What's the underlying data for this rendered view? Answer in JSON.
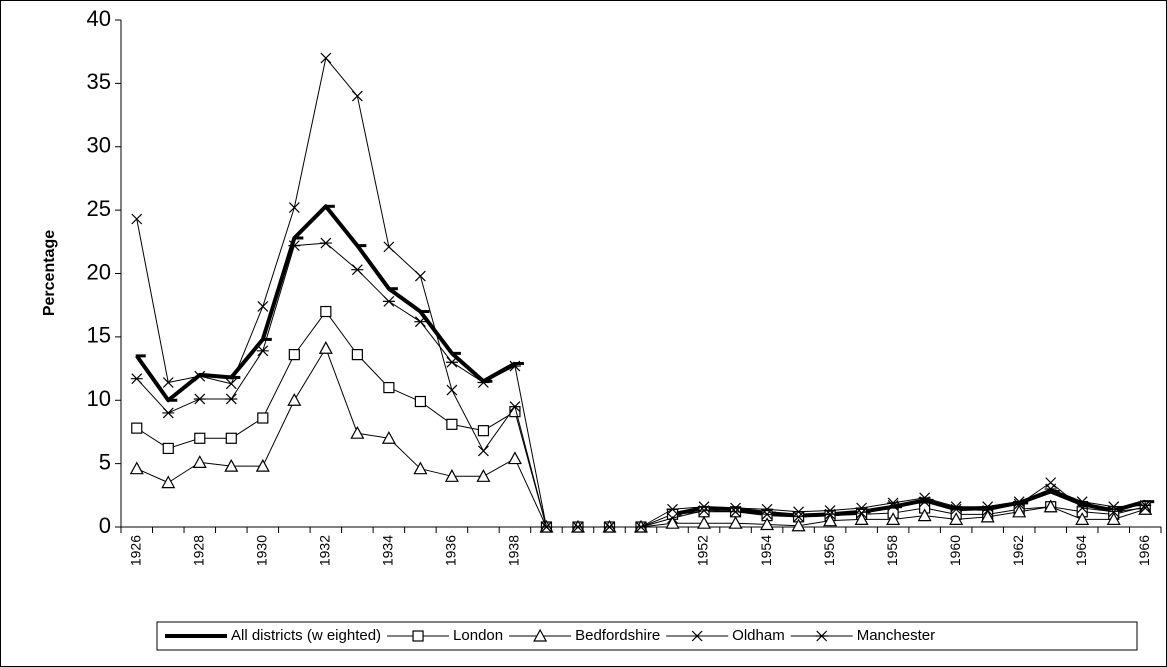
{
  "chart_data": {
    "type": "line",
    "y_label": "Percentage",
    "categories": [
      "1926",
      null,
      "1928",
      null,
      "1930",
      null,
      "1932",
      null,
      "1934",
      null,
      "1936",
      null,
      "1938",
      null,
      null,
      null,
      null,
      null,
      "1952",
      null,
      "1954",
      null,
      "1956",
      null,
      "1958",
      null,
      "1960",
      null,
      "1962",
      null,
      "1964",
      null,
      "1966"
    ],
    "ylim": [
      0,
      40
    ],
    "yticks": [
      0,
      5,
      10,
      15,
      20,
      25,
      30,
      35,
      40
    ],
    "grid": false,
    "legend": "bottom",
    "series": [
      {
        "name": "All districts (w eighted)",
        "color": "#000000",
        "line_width": 4,
        "marker": "dash",
        "values": [
          13.5,
          10,
          12,
          11.8,
          14.8,
          22.8,
          25.3,
          22.2,
          18.8,
          17,
          13.7,
          11.5,
          12.9,
          null,
          null,
          null,
          null,
          1.0,
          1.5,
          1.4,
          1.1,
          0.9,
          1.0,
          1.2,
          1.6,
          2.1,
          1.4,
          1.5,
          1.9,
          2.8,
          1.8,
          1.3,
          2.0
        ]
      },
      {
        "name": "London",
        "color": "#000000",
        "line_width": 1,
        "marker": "square",
        "values": [
          7.8,
          6.2,
          7.0,
          7.0,
          8.6,
          13.6,
          17.0,
          13.6,
          11.0,
          9.9,
          8.1,
          7.6,
          9.1,
          0,
          0,
          0,
          0,
          1.0,
          1.2,
          1.2,
          0.9,
          0.8,
          0.9,
          1.0,
          1.1,
          1.5,
          1.0,
          1.0,
          1.4,
          1.6,
          1.2,
          1.0,
          1.6
        ]
      },
      {
        "name": "Bedfordshire",
        "color": "#000000",
        "line_width": 1,
        "marker": "triangle",
        "values": [
          4.6,
          3.5,
          5.1,
          4.8,
          4.8,
          10.0,
          14.1,
          7.4,
          7.0,
          4.6,
          4.0,
          4.0,
          5.4,
          0,
          0,
          0,
          0,
          0.3,
          0.3,
          0.3,
          0.2,
          0.1,
          0.5,
          0.6,
          0.6,
          0.9,
          0.6,
          0.8,
          1.2,
          1.6,
          0.6,
          0.6,
          1.4
        ]
      },
      {
        "name": "Oldham",
        "color": "#000000",
        "line_width": 1,
        "marker": "x",
        "values": [
          24.3,
          11.4,
          11.9,
          11.3,
          17.4,
          25.2,
          37.0,
          34.0,
          22.1,
          19.8,
          10.8,
          6.0,
          9.5,
          0,
          0,
          0,
          0,
          0.7,
          1.3,
          1.2,
          1.0,
          0.8,
          1.0,
          1.1,
          1.7,
          2.0,
          1.4,
          1.3,
          1.8,
          3.5,
          1.5,
          1.2,
          1.5
        ]
      },
      {
        "name": "Manchester",
        "color": "#000000",
        "line_width": 1,
        "marker": "asterisk",
        "values": [
          11.7,
          9.0,
          10.1,
          10.1,
          13.9,
          22.2,
          22.4,
          20.3,
          17.8,
          16.2,
          13.0,
          11.4,
          12.7,
          0,
          0,
          0,
          0,
          1.4,
          1.6,
          1.5,
          1.4,
          1.2,
          1.3,
          1.5,
          1.9,
          2.3,
          1.6,
          1.6,
          2.0,
          3.0,
          2.0,
          1.6,
          1.7
        ]
      }
    ]
  }
}
